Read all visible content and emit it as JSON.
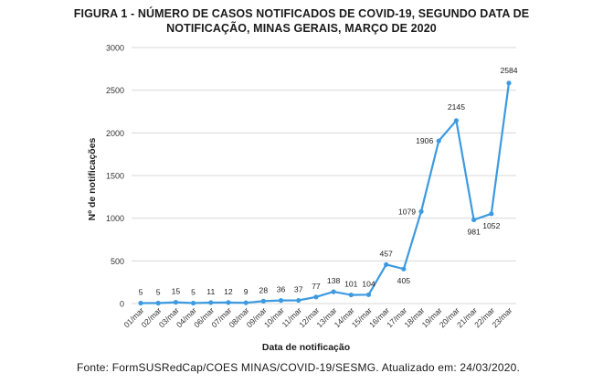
{
  "title_line1": "FIGURA 1 - NÚMERO DE CASOS NOTIFICADOS DE COVID-19, SEGUNDO DATA DE",
  "title_line2": "NOTIFICAÇÃO, MINAS GERAIS, MARÇO DE 2020",
  "source": "Fonte: FormSUSRedCap/COES MINAS/COVID-19/SESMG. Atualizado em: 24/03/2020.",
  "chart_data": {
    "type": "line",
    "xlabel": "Data de notificação",
    "ylabel": "Nº de notificações",
    "ylim": [
      0,
      3000
    ],
    "yticks": [
      0,
      500,
      1000,
      1500,
      2000,
      2500,
      3000
    ],
    "grid": true,
    "categories": [
      "01/mar",
      "02/mar",
      "03/mar",
      "04/mar",
      "06/mar",
      "07/mar",
      "08/mar",
      "09/mar",
      "10/mar",
      "11/mar",
      "12/mar",
      "13/mar",
      "14/mar",
      "15/mar",
      "16/mar",
      "17/mar",
      "18/mar",
      "19/mar",
      "20/mar",
      "21/mar",
      "22/mar",
      "23/mar"
    ],
    "values": [
      5,
      5,
      15,
      5,
      11,
      12,
      9,
      28,
      36,
      37,
      77,
      138,
      101,
      104,
      457,
      405,
      1079,
      1906,
      2145,
      981,
      1052,
      2584
    ],
    "line_color": "#3d9ae0"
  }
}
